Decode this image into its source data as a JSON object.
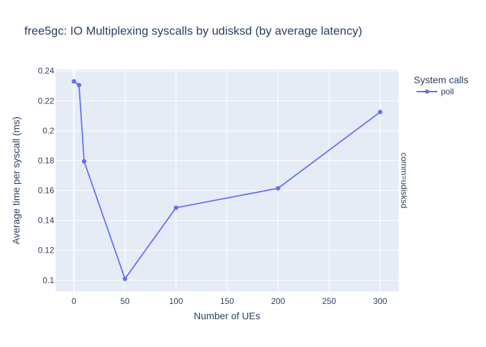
{
  "chart_data": {
    "type": "line",
    "title": "free5gc: IO Multiplexing syscalls by udisksd (by average latency)",
    "xlabel": "Number of UEs",
    "ylabel": "Average time per syscall (ms)",
    "legend_title": "System calls",
    "legend_position": "top-right",
    "facet_label": "comm=udisksd",
    "grid": true,
    "xlim": [
      -18,
      318
    ],
    "ylim": [
      0.0925,
      0.241
    ],
    "x_ticks": [
      0,
      50,
      100,
      150,
      200,
      250,
      300
    ],
    "y_ticks": [
      0.1,
      0.12,
      0.14,
      0.16,
      0.18,
      0.2,
      0.22,
      0.24
    ],
    "y_tick_labels": [
      "0.1",
      "0.12",
      "0.14",
      "0.16",
      "0.18",
      "0.2",
      "0.22",
      "0.24"
    ],
    "series": [
      {
        "name": "poll",
        "color": "#636efa",
        "x": [
          0,
          5,
          10,
          50,
          100,
          200,
          300
        ],
        "y": [
          0.233,
          0.2305,
          0.1795,
          0.101,
          0.1485,
          0.1615,
          0.2125
        ]
      }
    ]
  }
}
